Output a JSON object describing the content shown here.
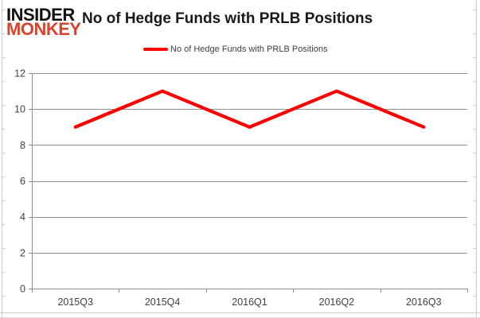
{
  "header": {
    "logo_top": "INSIDER",
    "logo_bottom": "MONKEY",
    "title": "No of Hedge Funds with PRLB Positions"
  },
  "legend": {
    "label": "No of Hedge Funds with PRLB Positions"
  },
  "colors": {
    "series": "#ff0000",
    "logo_black": "#111111",
    "logo_red": "#d8432d",
    "grid": "#919191",
    "axis": "#919191",
    "tick_label": "#3f3f3f",
    "frame": "#cccccc"
  },
  "chart_data": {
    "type": "line",
    "categories": [
      "2015Q3",
      "2015Q4",
      "2016Q1",
      "2016Q2",
      "2016Q3"
    ],
    "series": [
      {
        "name": "No of Hedge Funds with PRLB Positions",
        "values": [
          9,
          11,
          9,
          11,
          9
        ]
      }
    ],
    "title": "No of Hedge Funds with PRLB Positions",
    "xlabel": "",
    "ylabel": "",
    "ylim": [
      0,
      12
    ],
    "ytick_step": 2,
    "yticks": [
      0,
      2,
      4,
      6,
      8,
      10,
      12
    ],
    "grid": true,
    "legend_position": "top"
  }
}
